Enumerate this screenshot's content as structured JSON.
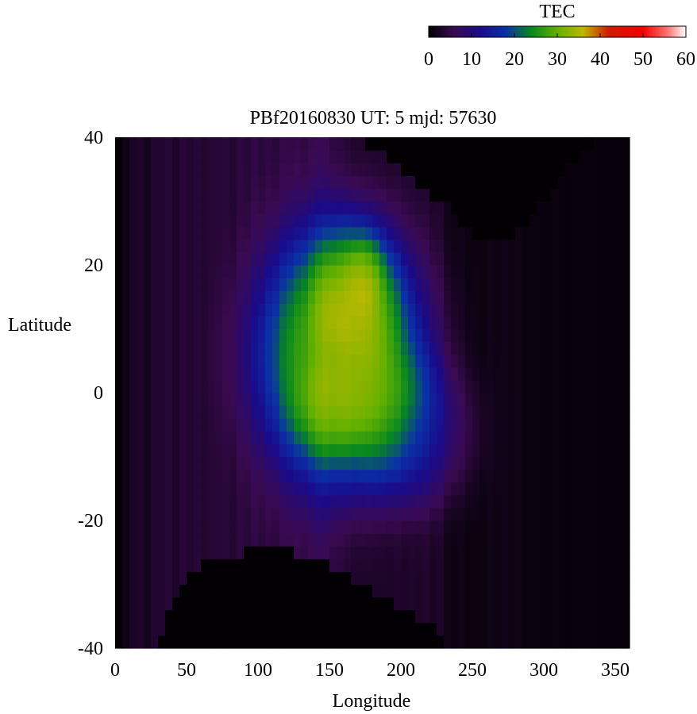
{
  "chart_data": {
    "type": "heatmap",
    "title": "PBf20160830  UT: 5  mjd: 57630",
    "xlabel": "Longitude",
    "ylabel": "Latitude",
    "xlim": [
      0,
      360
    ],
    "ylim": [
      -40,
      40
    ],
    "x_ticks": [
      "0",
      "50",
      "100",
      "150",
      "200",
      "250",
      "300",
      "350"
    ],
    "y_ticks": [
      "40",
      "20",
      "0",
      "-20",
      "-40"
    ],
    "grid": false,
    "colorbar": {
      "label": "TEC",
      "range": [
        0,
        60
      ],
      "ticks": [
        "0",
        "10",
        "20",
        "30",
        "40",
        "50",
        "60"
      ],
      "placement": "top-right",
      "stops": [
        {
          "value": 0,
          "color": "#000000"
        },
        {
          "value": 6,
          "color": "#3a0a52"
        },
        {
          "value": 12,
          "color": "#1a0a8a"
        },
        {
          "value": 18,
          "color": "#0a30a8"
        },
        {
          "value": 24,
          "color": "#08881e"
        },
        {
          "value": 30,
          "color": "#62b000"
        },
        {
          "value": 36,
          "color": "#bcb800"
        },
        {
          "value": 42,
          "color": "#d01c00"
        },
        {
          "value": 50,
          "color": "#f20000"
        },
        {
          "value": 56,
          "color": "#ff7a7a"
        },
        {
          "value": 60,
          "color": "#ffffff"
        }
      ]
    },
    "grid_spec": {
      "lon_step": 5,
      "lat_step": 2
    },
    "background": {
      "value": 3,
      "band_values": [
        0.3,
        1.5,
        2.8,
        3.2,
        2.2,
        3.5,
        3.5,
        4.0,
        3.0,
        4.0,
        3.5,
        4.0,
        3.4,
        4.0,
        4.0,
        4.2,
        3.6,
        4.6,
        4.1,
        5.0,
        4.2,
        4.8,
        4.2,
        5.2,
        5.0,
        5.2,
        4.6,
        5.4,
        5.8,
        5.6,
        4.4,
        4.0,
        3.6,
        3.0,
        3.0,
        3.0,
        3.0,
        3.0,
        2.8,
        3.2,
        2.9,
        3.1,
        3.0,
        3.3,
        2.6,
        3.0,
        1.5,
        1.3,
        1.6,
        1.1,
        1.3,
        1.1,
        1.6,
        1.4,
        1.7,
        1.4,
        1.5,
        1.2,
        1.0,
        1.1,
        0.9,
        1.1,
        0.9,
        0.8,
        0.9,
        0.8,
        0.9,
        0.8,
        0.7,
        0.8,
        0.6,
        0.5
      ]
    },
    "features": [
      {
        "lon": 158,
        "lat": 6,
        "sigma_lon": 48,
        "sigma_lat": 17,
        "amplitude": 24
      },
      {
        "lon": 170,
        "lat": 15,
        "sigma_lon": 24,
        "sigma_lat": 10,
        "amplitude": 8
      },
      {
        "lon": 208,
        "lat": -6,
        "sigma_lon": 34,
        "sigma_lat": 10,
        "amplitude": 8
      },
      {
        "lon": 150,
        "lat": -3,
        "sigma_lon": 22,
        "sigma_lat": 6,
        "amplitude": 4
      },
      {
        "lon": 175,
        "lat": 19,
        "sigma_lon": 10,
        "sigma_lat": 5,
        "amplitude": 4
      }
    ],
    "data_mask": {
      "north_edge": [
        {
          "lon": 0,
          "lat": 40
        },
        {
          "lon": 45,
          "lat": 40
        },
        {
          "lon": 60,
          "lat": 39
        },
        {
          "lon": 100,
          "lat": 39
        },
        {
          "lon": 140,
          "lat": 40
        },
        {
          "lon": 160,
          "lat": 40
        },
        {
          "lon": 175,
          "lat": 39
        },
        {
          "lon": 190,
          "lat": 37
        },
        {
          "lon": 200,
          "lat": 35
        },
        {
          "lon": 210,
          "lat": 33
        },
        {
          "lon": 220,
          "lat": 31
        },
        {
          "lon": 230,
          "lat": 30
        },
        {
          "lon": 240,
          "lat": 27
        },
        {
          "lon": 250,
          "lat": 25
        },
        {
          "lon": 260,
          "lat": 24
        },
        {
          "lon": 270,
          "lat": 24
        },
        {
          "lon": 280,
          "lat": 25
        },
        {
          "lon": 290,
          "lat": 27
        },
        {
          "lon": 300,
          "lat": 30
        },
        {
          "lon": 320,
          "lat": 36
        },
        {
          "lon": 340,
          "lat": 40
        },
        {
          "lon": 360,
          "lat": 40
        }
      ],
      "south_edge": [
        {
          "lon": 0,
          "lat": -40
        },
        {
          "lon": 30,
          "lat": -40
        },
        {
          "lon": 40,
          "lat": -32
        },
        {
          "lon": 50,
          "lat": -29
        },
        {
          "lon": 60,
          "lat": -27
        },
        {
          "lon": 75,
          "lat": -26
        },
        {
          "lon": 90,
          "lat": -25
        },
        {
          "lon": 105,
          "lat": -24
        },
        {
          "lon": 120,
          "lat": -24
        },
        {
          "lon": 135,
          "lat": -26
        },
        {
          "lon": 150,
          "lat": -27
        },
        {
          "lon": 165,
          "lat": -29
        },
        {
          "lon": 180,
          "lat": -31
        },
        {
          "lon": 195,
          "lat": -33
        },
        {
          "lon": 210,
          "lat": -35
        },
        {
          "lon": 225,
          "lat": -37
        },
        {
          "lon": 235,
          "lat": -40
        },
        {
          "lon": 360,
          "lat": -40
        }
      ],
      "west_masked_lon": 5
    }
  }
}
